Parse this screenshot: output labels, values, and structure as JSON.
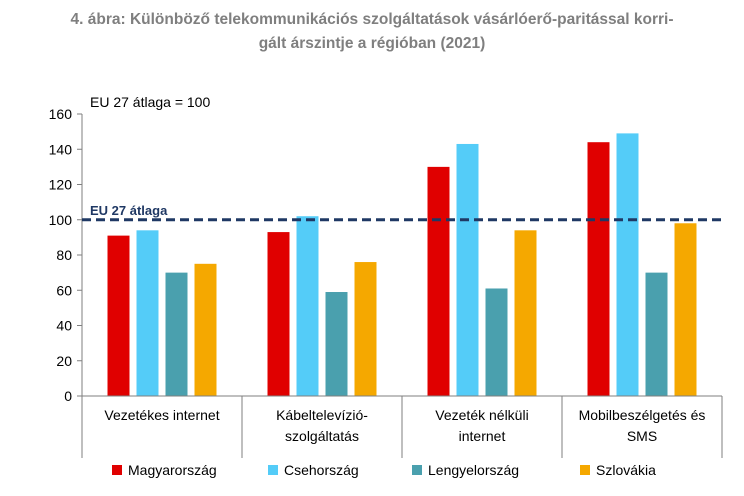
{
  "figure": {
    "title_line1": "4. ábra: Különböző telekommunikációs szolgáltatások vásárlóerő-paritással korri-",
    "title_line2": "gált árszintje a régióban (2021)"
  },
  "chart_data": {
    "type": "bar",
    "title": "4. ábra: Különböző telekommunikációs szolgáltatások vásárlóerő-paritással korrigált árszintje a régióban (2021)",
    "annotation_top": "EU 27 átlaga = 100",
    "reference_line": {
      "value": 100,
      "label": "EU 27 átlaga",
      "color": "#1f3864",
      "style": "dashed"
    },
    "categories": [
      [
        "Vezetékes internet"
      ],
      [
        "Kábeltelevízió-",
        "szolgáltatás"
      ],
      [
        "Vezeték nélküli",
        "internet"
      ],
      [
        "Mobilbeszélgetés és",
        "SMS"
      ]
    ],
    "series": [
      {
        "name": "Magyarország",
        "color": "#e00000",
        "values": [
          91,
          93,
          130,
          144
        ]
      },
      {
        "name": "Csehország",
        "color": "#54ccf8",
        "values": [
          94,
          102,
          143,
          149
        ]
      },
      {
        "name": "Lengyelország",
        "color": "#4aa0ae",
        "values": [
          70,
          59,
          61,
          70
        ]
      },
      {
        "name": "Szlovákia",
        "color": "#f5a800",
        "values": [
          75,
          76,
          94,
          98
        ]
      }
    ],
    "ylim": [
      0,
      160
    ],
    "yticks": [
      0,
      20,
      40,
      60,
      80,
      100,
      120,
      140,
      160
    ],
    "grid": false,
    "legend_position": "bottom"
  }
}
